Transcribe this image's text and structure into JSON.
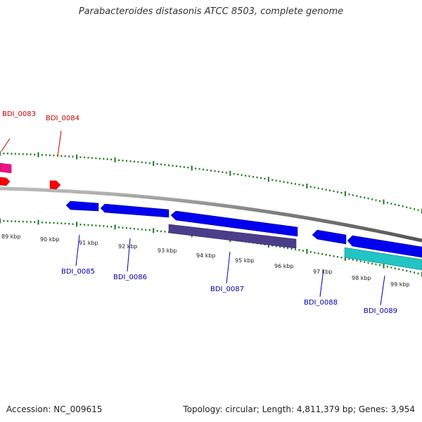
{
  "title": "Parabacteroides distasonis ATCC 8503, complete genome",
  "accession_label": "Accession: NC_009615",
  "topology_label": "Topology: circular; Length: 4,811,379 bp; Genes: 3,954",
  "colors": {
    "backbone": "#7a7a7a",
    "forward_tick": "#1a7a1a",
    "reverse_tick": "#1a7a1a",
    "red_gene": "#ff0000",
    "pink_gene": "#ee1188",
    "blue_gene": "#0000ee",
    "purple_gene": "#4b3d8a",
    "cyan_gene": "#22c4c4",
    "upper_label": "#cc0000",
    "lower_label": "#0000aa"
  },
  "gene_labels": [
    {
      "id": "gene-label-bdi0083",
      "text": "BDI_0083"
    },
    {
      "id": "gene-label-bdi0084",
      "text": "BDI_0084"
    },
    {
      "id": "gene-label-bdi0085",
      "text": "BDI_0085"
    },
    {
      "id": "gene-label-bdi0086",
      "text": "BDI_0086"
    },
    {
      "id": "gene-label-bdi0087",
      "text": "BDI_0087"
    },
    {
      "id": "gene-label-bdi0088",
      "text": "BDI_0088"
    },
    {
      "id": "gene-label-bdi0089",
      "text": "BDI_0089"
    }
  ],
  "kbp_labels": [
    "89 kbp",
    "90 kbp",
    "91 kbp",
    "92 kbp",
    "93 kbp",
    "94 kbp",
    "95 kbp",
    "96 kbp",
    "97 kbp",
    "98 kbp",
    "99 kbp"
  ]
}
